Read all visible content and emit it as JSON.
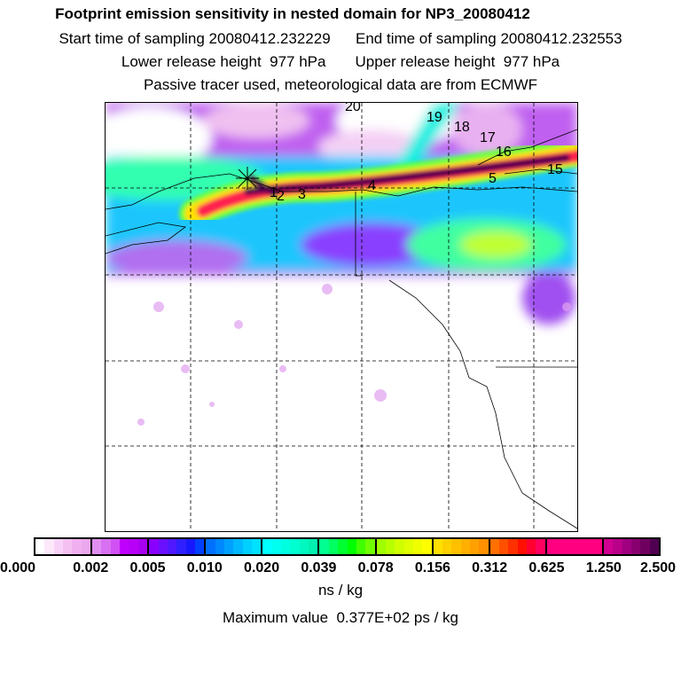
{
  "header": {
    "title": "Footprint emission sensitivity in nested domain for NP3_20080412",
    "start_label": "Start time of sampling 20080412.232229",
    "end_label": "End time of sampling 20080412.232553",
    "lower_label": "Lower release height  977 hPa",
    "upper_label": "Upper release height  977 hPa",
    "note": "Passive tracer used, meteorological data are from ECMWF"
  },
  "map": {
    "time_labels": [
      "1",
      "2",
      "3",
      "4",
      "5",
      "15",
      "16",
      "17",
      "18",
      "19",
      "20"
    ]
  },
  "colorbar": {
    "ticks": [
      "0.000",
      "0.002",
      "0.005",
      "0.010",
      "0.020",
      "0.039",
      "0.078",
      "0.156",
      "0.312",
      "0.625",
      "1.250",
      "2.500"
    ],
    "unit": "ns / kg",
    "segments": [
      [
        "#ffffff",
        "#fde8fb",
        "#f8d2f6",
        "#f4c0f2",
        "#f0b0f0",
        "#eca8ee"
      ],
      [
        "#e08ff0",
        "#d870f2",
        "#d050f4",
        "#c000ff",
        "#b800f8",
        "#a800f0"
      ],
      [
        "#8a00ff",
        "#6a10ff",
        "#5018ff",
        "#3020ff",
        "#1818ff",
        "#0040ff"
      ],
      [
        "#0070ff",
        "#0088ff",
        "#00a0ff",
        "#00b8ff",
        "#00d0ff",
        "#00e0ff"
      ],
      [
        "#00ffff",
        "#00fff0",
        "#00ffe0",
        "#00ffd0",
        "#00f8c0",
        "#00f0b0"
      ],
      [
        "#00ff90",
        "#00ff60",
        "#00ff30",
        "#00ff00",
        "#40ff00",
        "#70ff00"
      ],
      [
        "#a0ff00",
        "#b8ff00",
        "#d0ff00",
        "#e0ff00",
        "#f0ff00",
        "#ffff00"
      ],
      [
        "#ffe000",
        "#ffd000",
        "#ffc000",
        "#ffb000",
        "#ffa000",
        "#ff9000"
      ],
      [
        "#ff7000",
        "#ff5000",
        "#ff3000",
        "#ff1000",
        "#ff0030",
        "#ff0060"
      ],
      [
        "#ff0080",
        "#ff0080",
        "#ff0080",
        "#ff0080",
        "#ff0080",
        "#ff0080"
      ],
      [
        "#d00090",
        "#b80088",
        "#a00080",
        "#880070",
        "#700060",
        "#500050"
      ]
    ],
    "max_label": "Maximum value  0.377E+02 ps / kg"
  }
}
